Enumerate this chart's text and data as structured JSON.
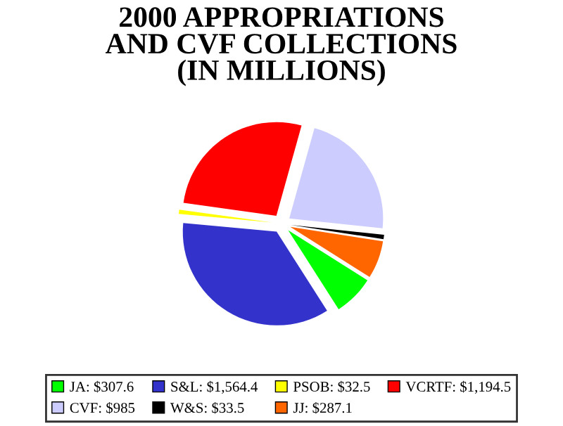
{
  "chart_data": {
    "type": "pie",
    "title": "2000 APPROPRIATIONS\nAND CVF COLLECTIONS\n(IN MILLIONS)",
    "categories": [
      "JA",
      "S&L",
      "PSOB",
      "VCRTF",
      "CVF",
      "W&S",
      "JJ"
    ],
    "values": [
      307.6,
      1564.4,
      32.5,
      1194.5,
      985,
      33.5,
      287.1
    ],
    "value_labels": [
      "$307.6",
      "$1,564.4",
      "$32.5",
      "$1,194.5",
      "$985",
      "$33.5",
      "$287.1"
    ],
    "colors": [
      "#00ff00",
      "#3333cc",
      "#ffff00",
      "#ff0000",
      "#ccccff",
      "#000000",
      "#ff6600"
    ],
    "legend": "bottom"
  }
}
